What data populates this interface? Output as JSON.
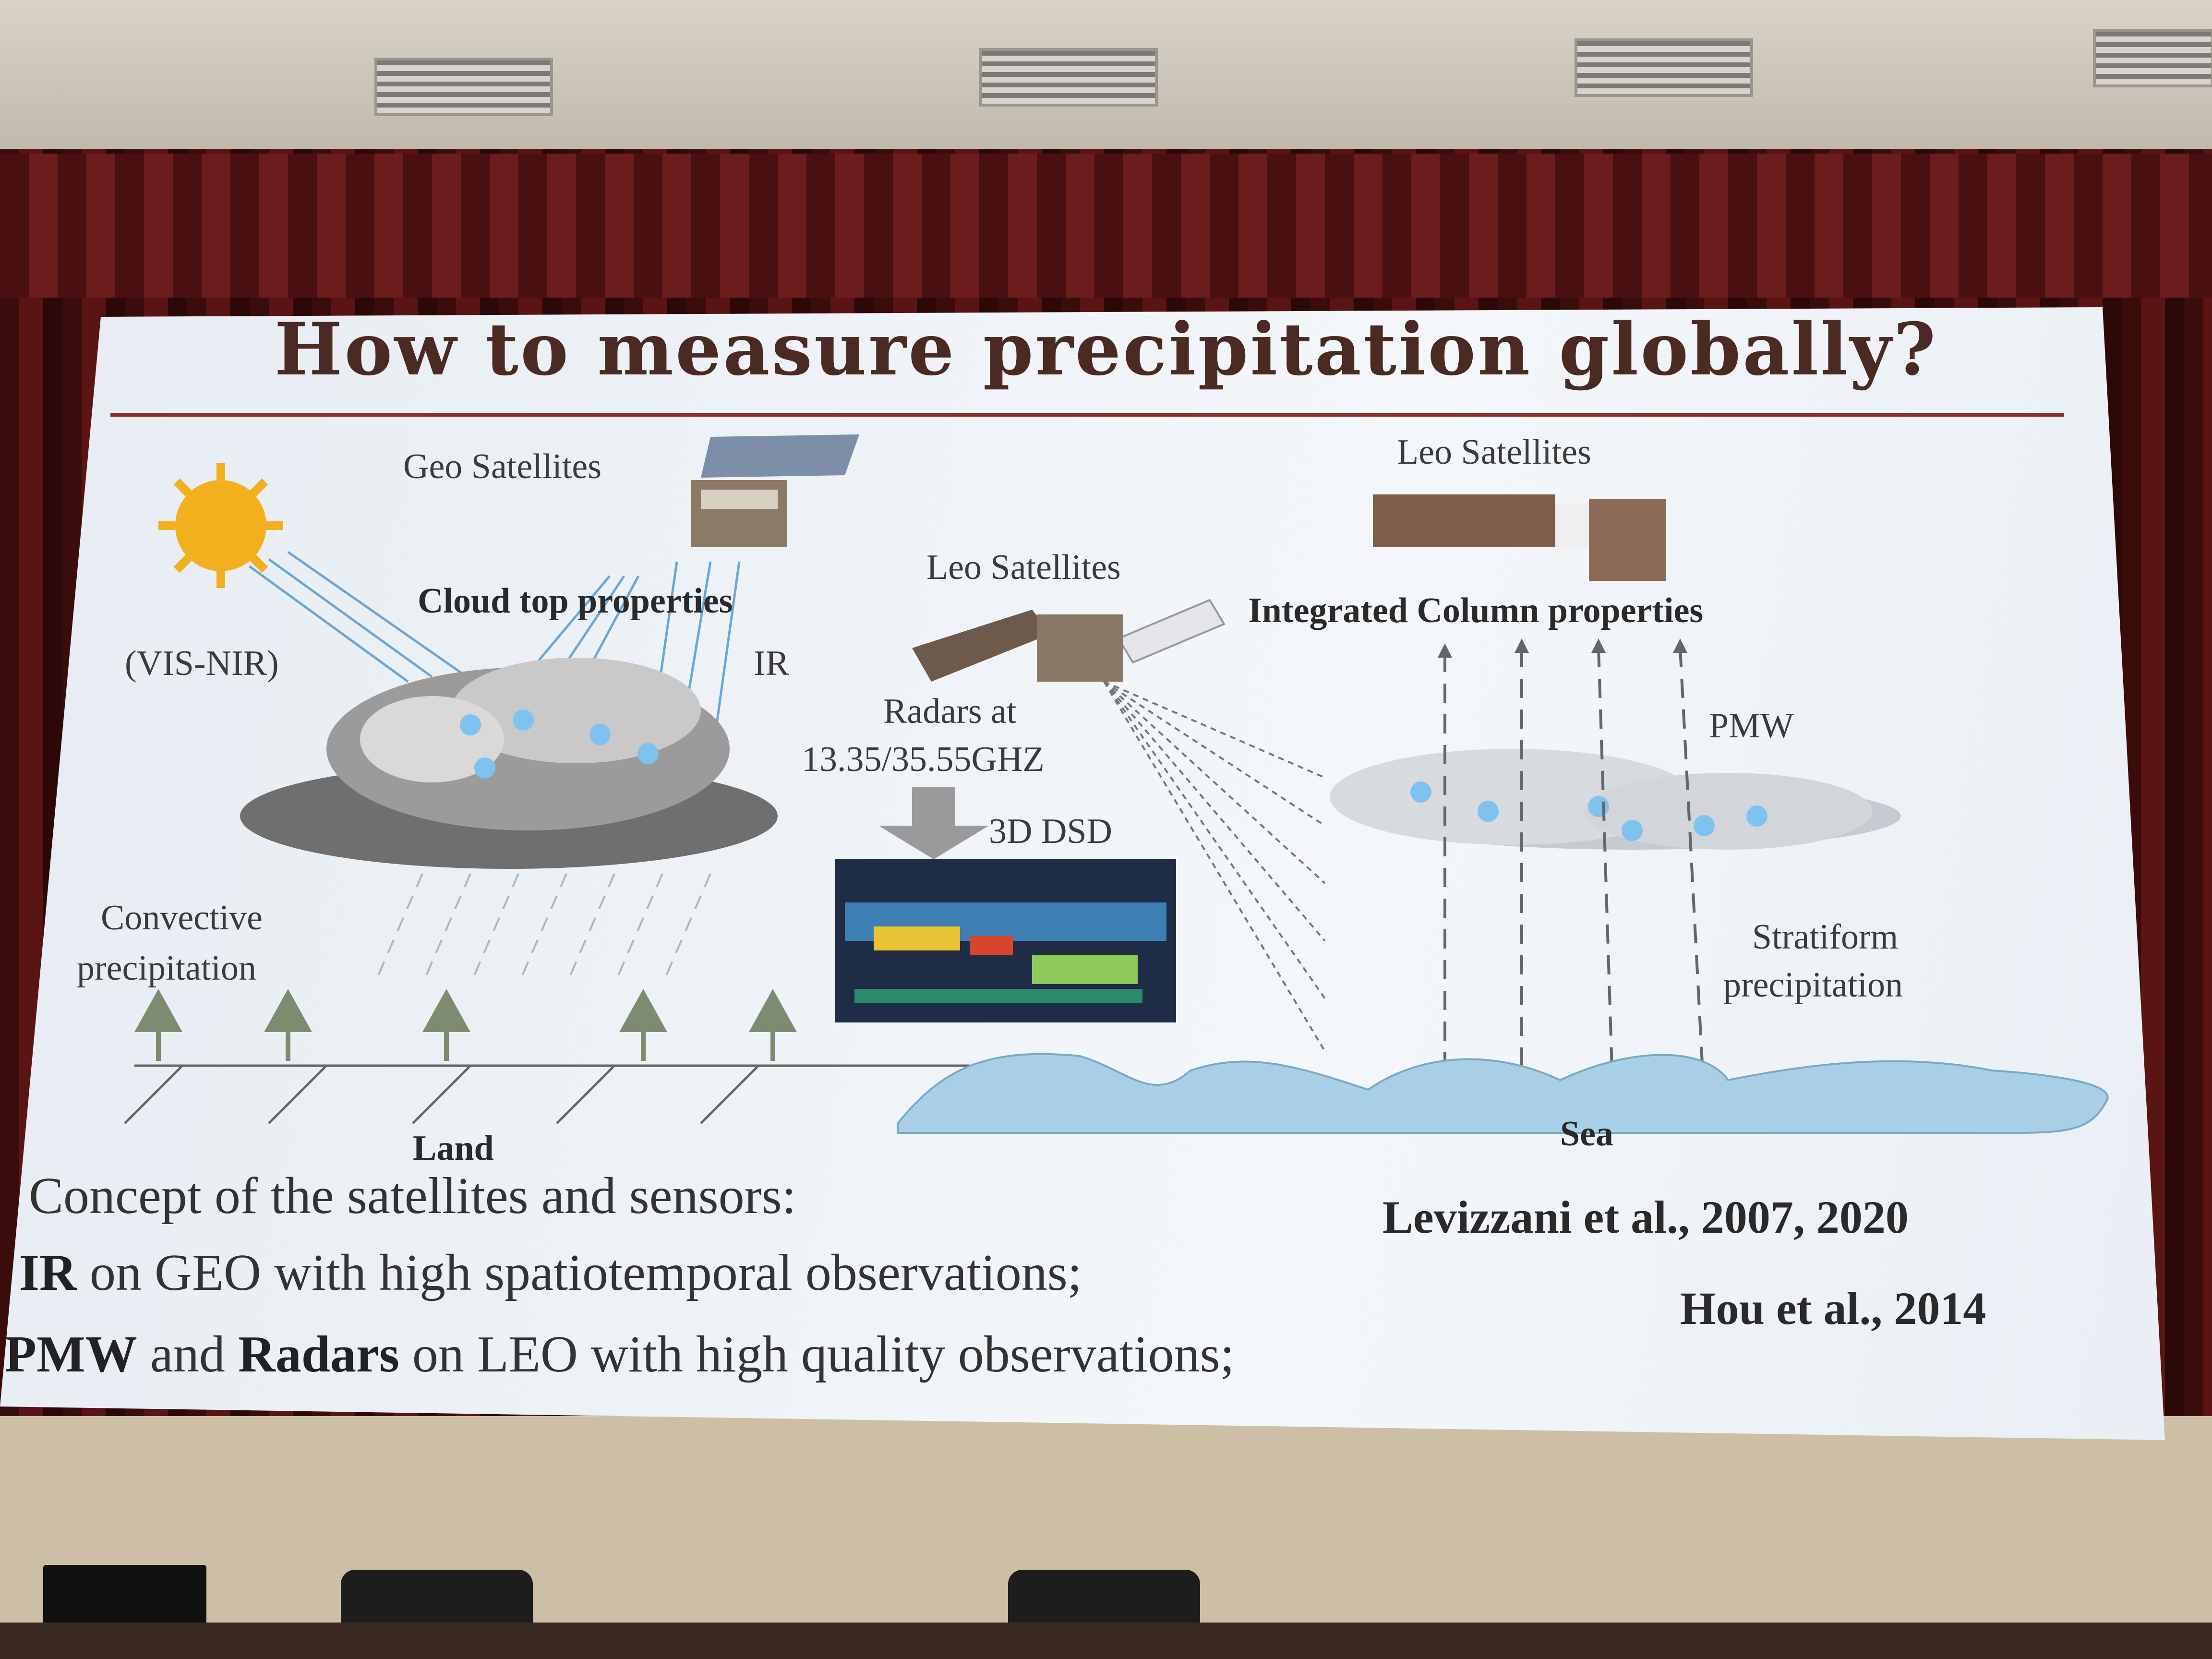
{
  "slide": {
    "title": "How to measure precipitation globally?",
    "labels": {
      "geo_satellites": "Geo Satellites",
      "leo_satellites_center": "Leo Satellites",
      "leo_satellites_right": "Leo Satellites",
      "cloud_top": "Cloud top properties",
      "integrated_column": "Integrated Column properties",
      "vis_nir": "(VIS-NIR)",
      "ir": "IR",
      "radars_line1": "Radars at",
      "radars_line2": "13.35/35.55GHZ",
      "dsd": "3D DSD",
      "pmw": "PMW",
      "convective_line1": "Convective",
      "convective_line2": "precipitation",
      "stratiform_line1": "Stratiform",
      "stratiform_line2": "precipitation",
      "land": "Land",
      "sea": "Sea"
    },
    "concept_title": "Concept of the satellites and sensors:",
    "line1_bold": "IR",
    "line1_rest": " on GEO with high spatiotemporal observations;",
    "line2_bold1": "PMW",
    "line2_mid": " and ",
    "line2_bold2": "Radars",
    "line2_rest": " on LEO with high quality observations;",
    "ref1": "Levizzani et al., 2007, 2020",
    "ref2": "Hou et al., 2014"
  },
  "colors": {
    "curtain": "#5a1414",
    "title": "#4a2a22",
    "rule": "#8a2e2a",
    "sea": "#a9cfe6",
    "sun": "#f2b01e",
    "arrow": "#5aa6e0"
  }
}
